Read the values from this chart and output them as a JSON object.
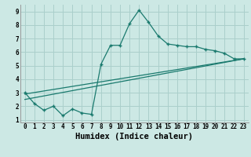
{
  "xlabel": "Humidex (Indice chaleur)",
  "bg_color": "#cce8e4",
  "grid_color": "#aacfcb",
  "line_color": "#1a7a6e",
  "xlim": [
    -0.5,
    23.5
  ],
  "ylim": [
    0.8,
    9.5
  ],
  "xticks": [
    0,
    1,
    2,
    3,
    4,
    5,
    6,
    7,
    8,
    9,
    10,
    11,
    12,
    13,
    14,
    15,
    16,
    17,
    18,
    19,
    20,
    21,
    22,
    23
  ],
  "yticks": [
    1,
    2,
    3,
    4,
    5,
    6,
    7,
    8,
    9
  ],
  "main_x": [
    0,
    1,
    2,
    3,
    4,
    5,
    6,
    7,
    8,
    9,
    10,
    11,
    12,
    13,
    14,
    15,
    16,
    17,
    18,
    19,
    20,
    21,
    22,
    23
  ],
  "main_y": [
    3.0,
    2.2,
    1.7,
    2.0,
    1.3,
    1.8,
    1.5,
    1.4,
    5.1,
    6.5,
    6.5,
    8.1,
    9.1,
    8.2,
    7.2,
    6.6,
    6.5,
    6.4,
    6.4,
    6.2,
    6.1,
    5.9,
    5.5,
    5.5
  ],
  "line2_x": [
    0,
    23
  ],
  "line2_y": [
    2.9,
    5.5
  ],
  "line3_x": [
    0,
    23
  ],
  "line3_y": [
    2.5,
    5.5
  ],
  "tick_fontsize": 5.5,
  "xlabel_fontsize": 7.5
}
